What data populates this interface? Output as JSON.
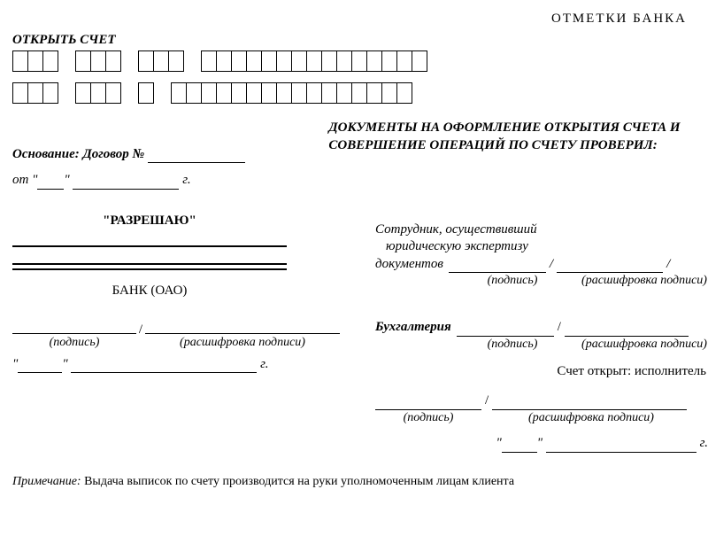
{
  "header": {
    "bank_marks": "ОТМЕТКИ  БАНКА"
  },
  "open_account": "ОТКРЫТЬ СЧЕТ",
  "boxes": {
    "row1_groups": [
      3,
      3,
      3,
      15
    ],
    "row2_groups": [
      3,
      3,
      1,
      16
    ]
  },
  "basis": {
    "label": "Основание: Договор № "
  },
  "doc_title": "ДОКУМЕНТЫ НА ОФОРМЛЕНИЕ ОТКРЫТИЯ СЧЕТА И СОВЕРШЕНИЕ ОПЕРАЦИЙ ПО СЧЕТУ ПРОВЕРИЛ:",
  "date_from": {
    "prefix": "от ",
    "year_suffix": " г."
  },
  "allow": "\"РАЗРЕШАЮ\"",
  "bank_oao": "БАНК (ОАО)",
  "sig": {
    "signature": "(подпись)",
    "decoding": "(расшифровка подписи)",
    "slash": "/",
    "year_suffix": " г."
  },
  "right": {
    "expert_l1": "Сотрудник, осуществивший",
    "expert_l2": "юридическую экспертизу",
    "expert_l3": "документов",
    "accounting": "Бухгалтерия",
    "opened": "Счет открыт: исполнитель"
  },
  "note": {
    "label": "Примечание:",
    "text": " Выдача выписок по счету производится на руки уполномоченным лицам клиента"
  },
  "colors": {
    "fg": "#000000",
    "bg": "#ffffff"
  }
}
